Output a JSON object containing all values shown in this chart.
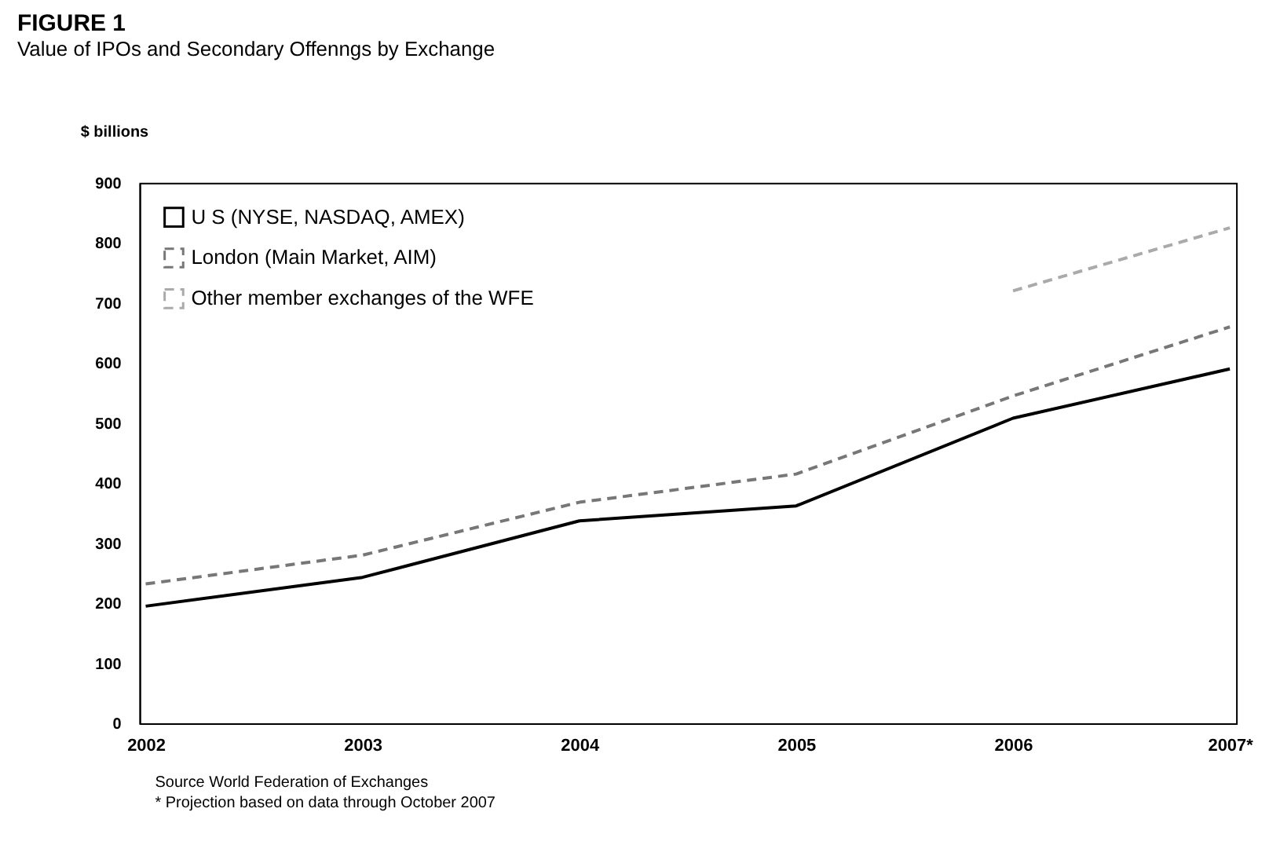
{
  "chart_data": {
    "type": "line",
    "title": "FIGURE 1",
    "subtitle": "Value of IPOs and Secondary Offenngs by Exchange",
    "ylabel": "$ billions",
    "categories": [
      "2002",
      "2003",
      "2004",
      "2005",
      "2006",
      "2007*"
    ],
    "series": [
      {
        "name": "U S  (NYSE, NASDAQ, AMEX)",
        "color": "#000000",
        "line_style": "solid",
        "values": [
          195,
          243,
          337,
          362,
          508,
          590
        ]
      },
      {
        "name": "London (Main Market, AIM)",
        "color": "#777777",
        "line_style": "dashed",
        "values": [
          232,
          280,
          368,
          415,
          545,
          660
        ]
      },
      {
        "name": "Other member exchanges of the WFE",
        "color": "#aaaaaa",
        "line_style": "dashed",
        "values": [
          null,
          null,
          null,
          null,
          720,
          825
        ]
      }
    ],
    "ylim": [
      0,
      900
    ],
    "yticks": [
      0,
      100,
      200,
      300,
      400,
      500,
      600,
      700,
      800,
      900
    ],
    "grid": false,
    "legend": "top left",
    "marker": "none",
    "annotations": [
      "Source  World Federation of Exchanges",
      "* Projection based on data through October 2007"
    ]
  }
}
